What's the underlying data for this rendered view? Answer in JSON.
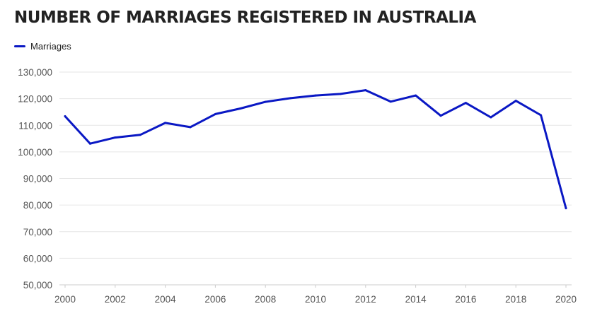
{
  "chart_data": {
    "type": "line",
    "title": "NUMBER OF MARRIAGES REGISTERED IN AUSTRALIA",
    "xlabel": "",
    "ylabel": "",
    "ylim": [
      50000,
      130000
    ],
    "y_ticks": [
      "50,000",
      "60,000",
      "70,000",
      "80,000",
      "90,000",
      "100,000",
      "110,000",
      "120,000",
      "130,000"
    ],
    "x_ticks": [
      "2000",
      "2002",
      "2004",
      "2006",
      "2008",
      "2010",
      "2012",
      "2014",
      "2016",
      "2018",
      "2020"
    ],
    "grid": true,
    "legend_position": "top-left",
    "x": [
      2000,
      2001,
      2002,
      2003,
      2004,
      2005,
      2006,
      2007,
      2008,
      2009,
      2010,
      2011,
      2012,
      2013,
      2014,
      2015,
      2016,
      2017,
      2018,
      2019,
      2020
    ],
    "series": [
      {
        "name": "Marriages",
        "color": "#0a18c4",
        "values": [
          113400,
          103100,
          105400,
          106400,
          110900,
          109300,
          114200,
          116300,
          118800,
          120200,
          121200,
          121800,
          123200,
          118900,
          121200,
          113600,
          118400,
          113000,
          119200,
          113800,
          78800
        ]
      }
    ]
  },
  "colors": {
    "grid": "#e6e6e6",
    "axis": "#cccccc",
    "text": "#555555"
  }
}
